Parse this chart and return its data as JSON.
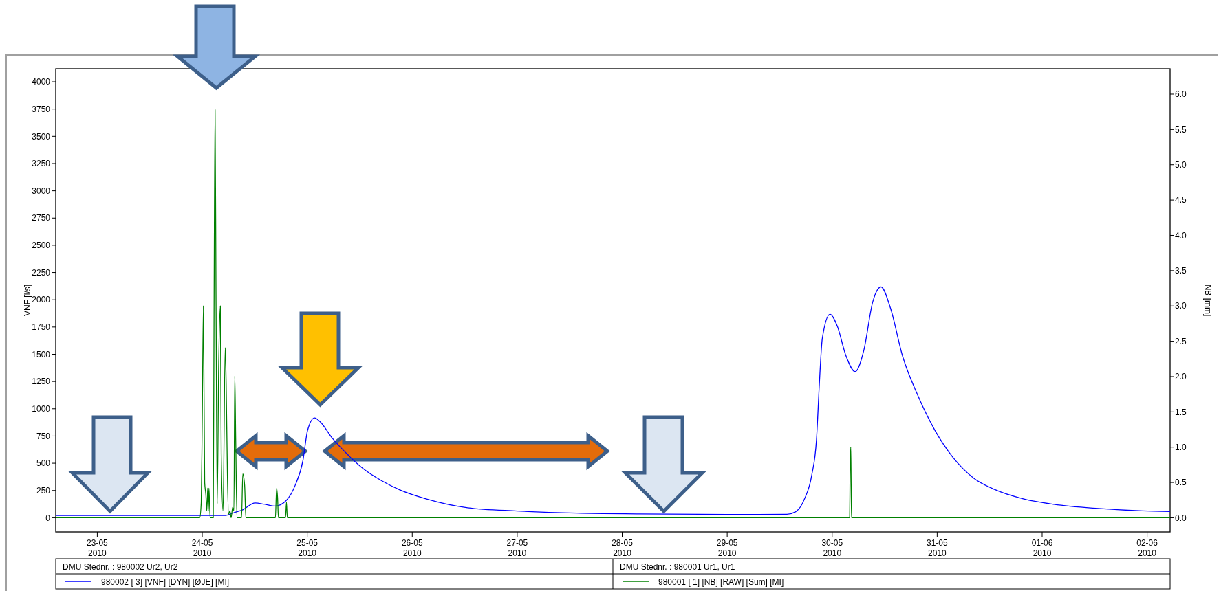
{
  "chart_data": {
    "type": "line",
    "ylabel": "VNF [l/s]",
    "y2label": "NB [mm]",
    "xlim": [
      "2010-05-22T14:30",
      "2010-06-02T05:15"
    ],
    "ylim": [
      -130,
      4120
    ],
    "y2lim": [
      -0.2,
      6.36
    ],
    "xticks": [
      {
        "value": "2010-05-23",
        "label": "23-05\n2010"
      },
      {
        "value": "2010-05-24",
        "label": "24-05\n2010"
      },
      {
        "value": "2010-05-25",
        "label": "25-05\n2010"
      },
      {
        "value": "2010-05-26",
        "label": "26-05\n2010"
      },
      {
        "value": "2010-05-27",
        "label": "27-05\n2010"
      },
      {
        "value": "2010-05-28",
        "label": "28-05\n2010"
      },
      {
        "value": "2010-05-29",
        "label": "29-05\n2010"
      },
      {
        "value": "2010-05-30",
        "label": "30-05\n2010"
      },
      {
        "value": "2010-05-31",
        "label": "31-05\n2010"
      },
      {
        "value": "2010-06-01",
        "label": "01-06\n2010"
      },
      {
        "value": "2010-06-02",
        "label": "02-06\n2010"
      }
    ],
    "yticks": [
      0,
      250,
      500,
      750,
      1000,
      1250,
      1500,
      1750,
      2000,
      2250,
      2500,
      2750,
      3000,
      3250,
      3500,
      3750,
      4000
    ],
    "y2ticks": [
      {
        "value": 0,
        "label": "0.0"
      },
      {
        "value": 0.5,
        "label": "0.5"
      },
      {
        "value": 1,
        "label": "1.0"
      },
      {
        "value": 1.5,
        "label": "1.5"
      },
      {
        "value": 2,
        "label": "2.0"
      },
      {
        "value": 2.5,
        "label": "2.5"
      },
      {
        "value": 3,
        "label": "3.0"
      },
      {
        "value": 3.5,
        "label": "3.5"
      },
      {
        "value": 4,
        "label": "4.0"
      },
      {
        "value": 4.5,
        "label": "4.5"
      },
      {
        "value": 5,
        "label": "5.0"
      },
      {
        "value": 5.5,
        "label": "5.5"
      },
      {
        "value": 6,
        "label": "6.0"
      }
    ],
    "grid": false,
    "legend": "bottom",
    "marker": "none",
    "line_style": "solid",
    "annotations": [
      "DMU Stednr. : 980002 Ur2, Ur2",
      "DMU Stednr. : 980001 Ur1, Ur1"
    ],
    "series": [
      {
        "name": "980002 [ 3] [VNF] [DYN] [ØJE] [MI]",
        "color": "#0000ff",
        "x": [
          "2010-05-22T14:30",
          "2010-05-23T23:25",
          "2010-05-24T05:05",
          "2010-05-24T07:10",
          "2010-05-24T09:15",
          "2010-05-24T12:05",
          "2010-05-24T14:10",
          "2010-05-24T16:40",
          "2010-05-24T19:10",
          "2010-05-24T21:15",
          "2010-05-24T23:00",
          "2010-05-25T00:05",
          "2010-05-25T01:40",
          "2010-05-25T02:55",
          "2010-05-25T05:40",
          "2010-05-25T09:15",
          "2010-05-25T12:45",
          "2010-05-25T17:00",
          "2010-05-25T21:10",
          "2010-05-26T03:25",
          "2010-05-26T12:40",
          "2010-05-27T00:00",
          "2010-05-27T13:35",
          "2010-05-28T03:55",
          "2010-05-29T07:00",
          "2010-05-29T13:40",
          "2010-05-29T15:40",
          "2010-05-29T17:40",
          "2010-05-29T19:20",
          "2010-05-29T20:25",
          "2010-05-29T21:05",
          "2010-05-29T21:45",
          "2010-05-29T23:30",
          "2010-05-30T01:10",
          "2010-05-30T03:10",
          "2010-05-30T05:15",
          "2010-05-30T07:15",
          "2010-05-30T09:15",
          "2010-05-30T11:10",
          "2010-05-30T13:20",
          "2010-05-30T16:05",
          "2010-05-30T19:30",
          "2010-05-30T23:30",
          "2010-05-31T03:35",
          "2010-05-31T08:20",
          "2010-05-31T13:05",
          "2010-05-31T19:50",
          "2010-06-01T02:40",
          "2010-06-01T12:50",
          "2010-06-01T23:00",
          "2010-06-02T05:15"
        ],
        "values": [
          20,
          20,
          20,
          45,
          73,
          135,
          124,
          107,
          157,
          298,
          522,
          803,
          916,
          882,
          733,
          579,
          452,
          340,
          256,
          171,
          92,
          62,
          42,
          35,
          30,
          32,
          55,
          172,
          391,
          719,
          1238,
          1648,
          1867,
          1758,
          1484,
          1341,
          1539,
          1977,
          2118,
          1922,
          1484,
          1129,
          801,
          555,
          364,
          260,
          172,
          123,
          85,
          63,
          57
        ]
      },
      {
        "name": "980001 [ 1] [NB] [RAW] [Sum] [MI]",
        "color": "#008000",
        "axis": "y2",
        "x": [
          "2010-05-22T14:30",
          "2010-05-23T23:25",
          "2010-05-23T23:46",
          "2010-05-23T23:59",
          "2010-05-24T00:16",
          "2010-05-24T00:33",
          "2010-05-24T00:49",
          "2010-05-24T01:02",
          "2010-05-24T01:15",
          "2010-05-24T01:23",
          "2010-05-24T01:32",
          "2010-05-24T01:48",
          "2010-05-24T02:31",
          "2010-05-24T02:43",
          "2010-05-24T02:56",
          "2010-05-24T03:09",
          "2010-05-24T03:25",
          "2010-05-24T03:46",
          "2010-05-24T04:08",
          "2010-05-24T04:20",
          "2010-05-24T04:45",
          "2010-05-24T05:15",
          "2010-05-24T05:28",
          "2010-05-24T05:45",
          "2010-05-24T06:02",
          "2010-05-24T06:19",
          "2010-05-24T06:36",
          "2010-05-24T06:57",
          "2010-05-24T07:14",
          "2010-05-24T07:26",
          "2010-05-24T07:39",
          "2010-05-24T07:56",
          "2010-05-24T08:59",
          "2010-05-24T09:16",
          "2010-05-24T09:41",
          "2010-05-24T09:58",
          "2010-05-24T16:43",
          "2010-05-24T17:00",
          "2010-05-24T17:13",
          "2010-05-24T17:25",
          "2010-05-24T19:02",
          "2010-05-24T19:15",
          "2010-05-24T19:27",
          "2010-05-30T04:00",
          "2010-05-30T04:05",
          "2010-05-30T04:15",
          "2010-05-30T04:20",
          "2010-05-30T04:25",
          "2010-06-02T05:15"
        ],
        "values": [
          0,
          0,
          0.22,
          1.3,
          3.0,
          0.5,
          0.33,
          0.1,
          0.42,
          0.1,
          0.42,
          0,
          0,
          3.3,
          5.78,
          3.09,
          0.2,
          2.2,
          3.0,
          0.9,
          0.1,
          2.41,
          1.9,
          0.6,
          0.05,
          0.1,
          0,
          0.15,
          0.1,
          2.01,
          1.11,
          0,
          0,
          0.62,
          0.46,
          0,
          0,
          0.42,
          0.29,
          0,
          0,
          0.22,
          0,
          0,
          0.6,
          1.0,
          0.5,
          0,
          0
        ]
      }
    ]
  }
}
